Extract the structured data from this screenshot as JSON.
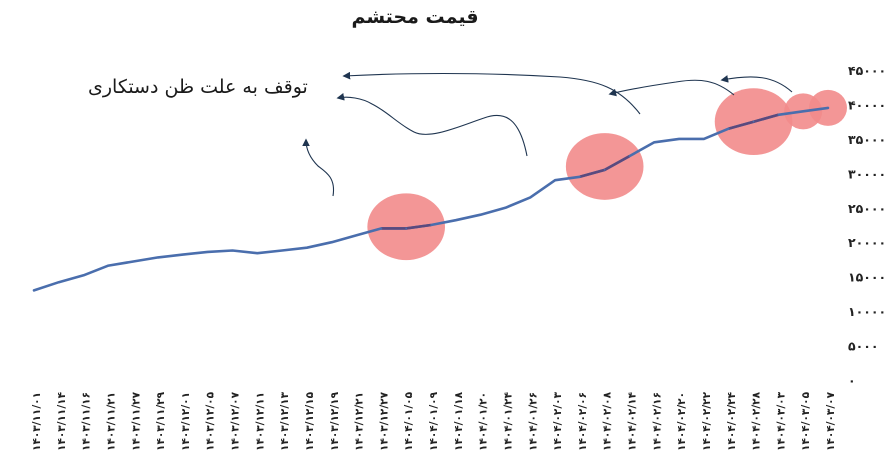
{
  "chart_data": {
    "type": "line",
    "title": "قیمت محتشم",
    "annotation": "توقف به علت ظن دستکاری",
    "xlabel": "",
    "ylabel": "",
    "ylim": [
      0,
      45000
    ],
    "y_ticks": [
      0,
      5000,
      10000,
      15000,
      20000,
      25000,
      30000,
      35000,
      40000,
      45000
    ],
    "y_tick_labels": [
      "0",
      "5000",
      "10000",
      "15000",
      "20000",
      "25000",
      "30000",
      "35000",
      "40000",
      "45000"
    ],
    "grid": false,
    "x_tick_labels": [
      "1403/11/01",
      "1403/11/14",
      "1403/11/16",
      "1403/11/21",
      "1403/11/27",
      "1403/11/29",
      "1403/12/01",
      "1403/12/05",
      "1403/12/07",
      "1403/12/11",
      "1403/12/13",
      "1403/12/15",
      "1403/12/19",
      "1403/12/21",
      "1403/12/27",
      "1404/01/05",
      "1404/01/09",
      "1404/01/18",
      "1404/01/20",
      "1404/01/24",
      "1404/01/26",
      "1404/02/03",
      "1404/02/06",
      "1404/02/08",
      "1404/02/14",
      "1404/02/16",
      "1404/02/20",
      "1404/02/22",
      "1404/02/24",
      "1404/02/28",
      "1404/03/03",
      "1404/03/05",
      "1404/03/07"
    ],
    "series": [
      {
        "values": [
          13000,
          14200,
          15200,
          16600,
          17200,
          17800,
          18200,
          18600,
          18800,
          18400,
          18800,
          19200,
          20000,
          21000,
          22000,
          22000,
          22500,
          23200,
          24000,
          25000,
          26500,
          29000,
          29500,
          30500,
          32500,
          34500,
          35000,
          35000,
          36500,
          37500,
          38500,
          39000,
          39500
        ]
      }
    ],
    "highlighted_stops": [
      {
        "start": 14,
        "end": 16
      },
      {
        "start": 22,
        "end": 24
      },
      {
        "start": 28,
        "end": 30
      },
      {
        "start": 31,
        "end": 31
      },
      {
        "start": 32,
        "end": 32
      }
    ],
    "colors": {
      "line": "#4a6ead",
      "highlight_line": "#5a4a7e",
      "highlight_fill": "#f28b8b",
      "arrow": "#1f3550",
      "text": "#1a1a1a"
    }
  }
}
